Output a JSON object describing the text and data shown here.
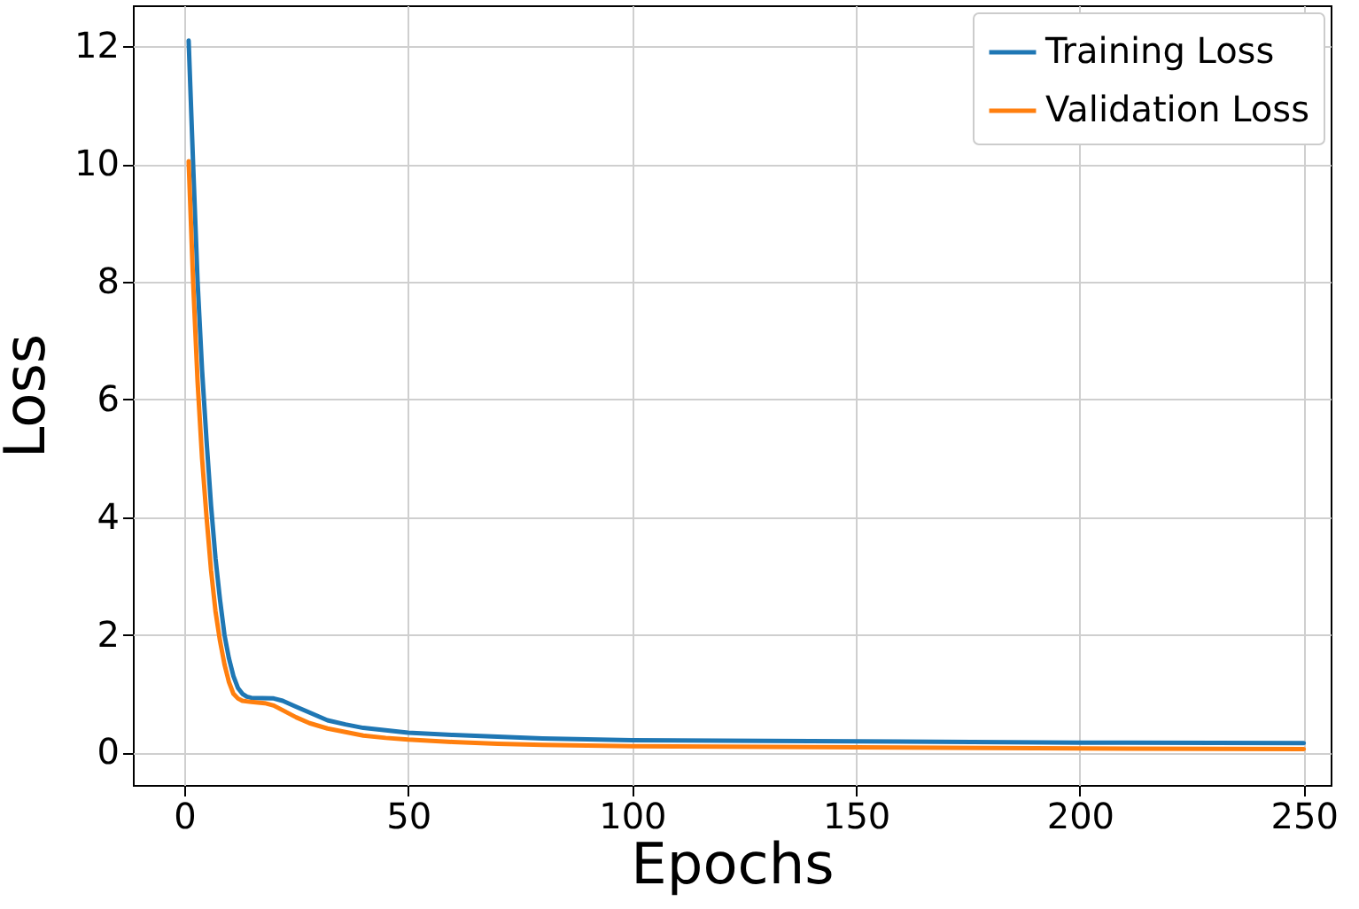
{
  "chart_data": {
    "type": "line",
    "xlabel": "Epochs",
    "ylabel": "Loss",
    "xlim": [
      -11.45,
      256
    ],
    "ylim": [
      -0.55,
      12.7
    ],
    "xticks": [
      0,
      50,
      100,
      150,
      200,
      250
    ],
    "yticks": [
      0,
      2,
      4,
      6,
      8,
      10,
      12
    ],
    "grid": true,
    "legend": "top right",
    "series": [
      {
        "name": "Training Loss",
        "color": "#1f77b4",
        "x": [
          1,
          2,
          3,
          4,
          5,
          6,
          7,
          8,
          9,
          10,
          11,
          12,
          13,
          14,
          15,
          20,
          22,
          25,
          28,
          32,
          36,
          40,
          45,
          50,
          60,
          70,
          80,
          100,
          150,
          200,
          250
        ],
        "values": [
          12.1,
          10,
          8,
          6.5,
          5.3,
          4.2,
          3.3,
          2.6,
          2.0,
          1.6,
          1.3,
          1.1,
          1.0,
          0.95,
          0.93,
          0.92,
          0.88,
          0.78,
          0.68,
          0.55,
          0.48,
          0.42,
          0.38,
          0.34,
          0.3,
          0.27,
          0.24,
          0.21,
          0.19,
          0.17,
          0.16
        ]
      },
      {
        "name": "Validation Loss",
        "color": "#ff7f0e",
        "x": [
          1,
          2,
          3,
          4,
          5,
          6,
          7,
          8,
          9,
          10,
          11,
          12,
          13,
          15,
          18,
          20,
          22,
          25,
          28,
          32,
          36,
          40,
          45,
          50,
          60,
          70,
          80,
          100,
          150,
          200,
          250
        ],
        "values": [
          10.05,
          8,
          6.3,
          5.0,
          4.0,
          3.1,
          2.4,
          1.9,
          1.5,
          1.2,
          1.0,
          0.92,
          0.88,
          0.86,
          0.84,
          0.8,
          0.72,
          0.6,
          0.5,
          0.41,
          0.35,
          0.29,
          0.25,
          0.22,
          0.18,
          0.15,
          0.13,
          0.11,
          0.09,
          0.07,
          0.06
        ]
      }
    ]
  }
}
